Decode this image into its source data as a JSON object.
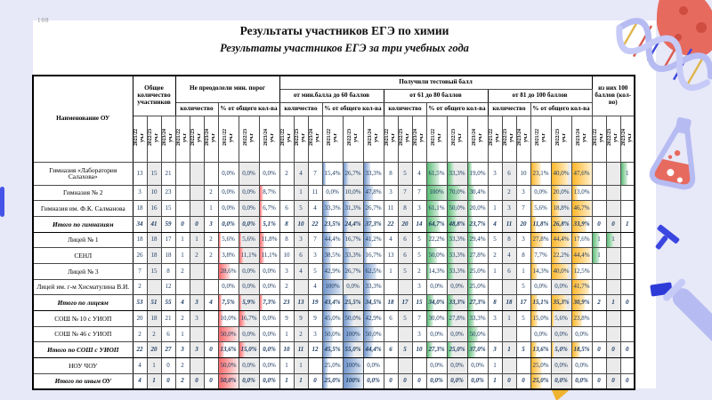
{
  "page": {
    "number": "108"
  },
  "title": "Результаты участников ЕГЭ по химии",
  "subtitle": "Результаты участников ЕГЭ за три учебных года",
  "bar_colors": {
    "red": [
      "#F8696B",
      "#FCE9E9"
    ],
    "blue": [
      "#6F93C9",
      "#E4ECF6"
    ],
    "green": [
      "#5BBD76",
      "#E2F2E6"
    ],
    "orange": [
      "#FFB628",
      "#FFF0D0"
    ]
  },
  "table": {
    "name_header": "Наименование ОУ",
    "years": [
      "2021/22 уч.г",
      "2022/23 уч.г",
      "2023/24 уч.г"
    ],
    "groups": {
      "total": "Общее количество участников",
      "below_min": "Не преодолели мин. порог",
      "got_score": "Получили тестовый балл",
      "count": "количество",
      "pct": "% от общего кол-ва",
      "min_60": "от мин.балла до 60 баллов",
      "b61_80": "от 61 до 80 баллов",
      "b81_100": "от 81 до 100 баллов",
      "of100": "из них 100 баллов (кол-во)"
    },
    "rows": [
      {
        "name": "Гимназия «Лаборатория Салахова»",
        "sum": false,
        "c": [
          "13",
          "15",
          "21",
          "",
          "",
          "",
          "0,0%",
          "0,0%",
          "0,0%",
          "2",
          "4",
          "7",
          "15,4%",
          "26,7%",
          "33,3%",
          "8",
          "5",
          "4",
          "61,5%",
          "33,3%",
          "19,0%",
          "3",
          "6",
          "10",
          "23,1%",
          "40,0%",
          "47,6%",
          "",
          "",
          "1"
        ]
      },
      {
        "name": "Гимназия № 2",
        "sum": false,
        "c": [
          "3",
          "10",
          "23",
          "",
          "",
          "2",
          "0,0%",
          "0,0%",
          "8,7%",
          "",
          "1",
          "11",
          "0,0%",
          "10,0%",
          "47,8%",
          "3",
          "7",
          "7",
          "100%",
          "70,0%",
          "30,4%",
          "",
          "2",
          "3",
          "0,0%",
          "20,0%",
          "13,0%",
          "",
          "",
          ""
        ]
      },
      {
        "name": "Гимназия им. Ф.К. Салманова",
        "sum": false,
        "c": [
          "18",
          "16",
          "15",
          "",
          "",
          "1",
          "0,0%",
          "0,0%",
          "6,7%",
          "6",
          "5",
          "4",
          "33,3%",
          "31,3%",
          "26,7%",
          "11",
          "8",
          "3",
          "61,1%",
          "50,0%",
          "20,0%",
          "1",
          "3",
          "7",
          "5,6%",
          "18,8%",
          "46,7%",
          "",
          "",
          ""
        ]
      },
      {
        "name": "Итого по гимназиям",
        "sum": true,
        "c": [
          "34",
          "41",
          "59",
          "0",
          "0",
          "3",
          "0,0%",
          "0,0%",
          "5,1%",
          "8",
          "10",
          "22",
          "23,5%",
          "24,4%",
          "37,3%",
          "22",
          "20",
          "14",
          "64,7%",
          "48,8%",
          "23,7%",
          "4",
          "11",
          "20",
          "11,8%",
          "26,8%",
          "33,9%",
          "0",
          "0",
          "1"
        ]
      },
      {
        "name": "Лицей № 1",
        "sum": false,
        "c": [
          "18",
          "18",
          "17",
          "1",
          "1",
          "2",
          "5,6%",
          "5,6%",
          "11,8%",
          "8",
          "3",
          "7",
          "44,4%",
          "16,7%",
          "41,2%",
          "4",
          "6",
          "5",
          "22,2%",
          "33,3%",
          "29,4%",
          "5",
          "8",
          "3",
          "27,8%",
          "44,4%",
          "17,6%",
          "1",
          "1",
          ""
        ]
      },
      {
        "name": "СЕНЛ",
        "sum": false,
        "c": [
          "26",
          "18",
          "18",
          "1",
          "2",
          "2",
          "3,8%",
          "11,1%",
          "11,1%",
          "10",
          "6",
          "3",
          "38,5%",
          "33,3%",
          "16,7%",
          "13",
          "6",
          "5",
          "50,0%",
          "33,3%",
          "27,8%",
          "2",
          "4",
          "8",
          "7,7%",
          "22,2%",
          "44,4%",
          "1",
          "",
          ""
        ]
      },
      {
        "name": "Лицей № 3",
        "sum": false,
        "c": [
          "7",
          "15",
          "8",
          "2",
          "",
          "",
          "28,6%",
          "0,0%",
          "0,0%",
          "3",
          "4",
          "5",
          "42,9%",
          "26,7%",
          "62,5%",
          "1",
          "5",
          "2",
          "14,3%",
          "33,3%",
          "25,0%",
          "1",
          "6",
          "1",
          "14,3%",
          "40,0%",
          "12,5%",
          "",
          "",
          ""
        ]
      },
      {
        "name": "Лицей им. г-м Хисматулина В.И.",
        "sum": false,
        "c": [
          "2",
          "",
          "12",
          "",
          "",
          "",
          "0,0%",
          "0,0%",
          "0,0%",
          "2",
          "",
          "4",
          "100%",
          "0,0%",
          "33,3%",
          "",
          "",
          "3",
          "0,0%",
          "0,0%",
          "25,0%",
          "",
          "",
          "5",
          "0,0%",
          "0,0%",
          "41,7%",
          "",
          "",
          ""
        ]
      },
      {
        "name": "Итого по лицеям",
        "sum": true,
        "c": [
          "53",
          "51",
          "55",
          "4",
          "3",
          "4",
          "7,5%",
          "5,9%",
          "7,3%",
          "23",
          "13",
          "19",
          "43,4%",
          "25,5%",
          "34,5%",
          "18",
          "17",
          "15",
          "34,0%",
          "33,3%",
          "27,3%",
          "8",
          "18",
          "17",
          "15,1%",
          "35,3%",
          "30,9%",
          "2",
          "1",
          "0"
        ]
      },
      {
        "name": "СОШ № 10 с УИОП",
        "sum": false,
        "c": [
          "20",
          "18",
          "21",
          "2",
          "3",
          "",
          "10,0%",
          "16,7%",
          "0,0%",
          "9",
          "9",
          "9",
          "45,0%",
          "50,0%",
          "42,9%",
          "6",
          "5",
          "7",
          "30,0%",
          "27,8%",
          "33,3%",
          "3",
          "1",
          "5",
          "15,0%",
          "5,6%",
          "23,8%",
          "",
          "",
          ""
        ]
      },
      {
        "name": "СОШ № 46 с УИОП",
        "sum": false,
        "c": [
          "2",
          "2",
          "6",
          "1",
          "",
          "",
          "50,0%",
          "0,0%",
          "0,0%",
          "1",
          "2",
          "3",
          "50,0%",
          "100%",
          "50,0%",
          "",
          "",
          "3",
          "0,0%",
          "0,0%",
          "50,0%",
          "",
          "",
          "",
          "0,0%",
          "0,0%",
          "0,0%",
          "",
          "",
          ""
        ]
      },
      {
        "name": "Итого по СОШ с УИОП",
        "sum": true,
        "c": [
          "22",
          "20",
          "27",
          "3",
          "3",
          "0",
          "13,6%",
          "15,0%",
          "0,0%",
          "10",
          "11",
          "12",
          "45,5%",
          "55,0%",
          "44,4%",
          "6",
          "5",
          "10",
          "27,3%",
          "25,0%",
          "37,0%",
          "3",
          "1",
          "5",
          "13,6%",
          "5,0%",
          "18,5%",
          "0",
          "0",
          "0"
        ]
      },
      {
        "name": "НОУ ЧОУ",
        "sum": false,
        "c": [
          "4",
          "1",
          "0",
          "2",
          "",
          "",
          "50,0%",
          "0,0%",
          "0,0%",
          "1",
          "1",
          "",
          "25,0%",
          "100%",
          "0,0%",
          "",
          "",
          "",
          "0,0%",
          "0,0%",
          "0,0%",
          "1",
          "",
          "",
          "25,0%",
          "0,0%",
          "0,0%",
          "",
          "",
          ""
        ]
      },
      {
        "name": "Итого по иным ОУ",
        "sum": true,
        "c": [
          "4",
          "1",
          "0",
          "2",
          "0",
          "0",
          "50,0%",
          "0,0%",
          "0,0%",
          "1",
          "1",
          "0",
          "25,0%",
          "100%",
          "0,0%",
          "0",
          "0",
          "0",
          "0,0%",
          "0,0%",
          "0,0%",
          "1",
          "0",
          "0",
          "25,0%",
          "0,0%",
          "0,0%",
          "0",
          "0",
          "0"
        ]
      }
    ]
  }
}
